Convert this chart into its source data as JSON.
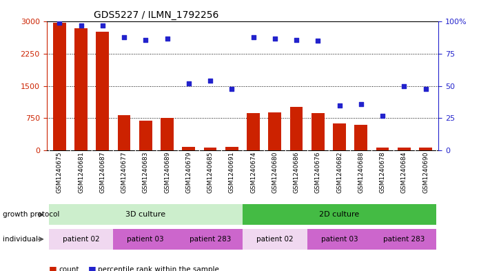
{
  "title": "GDS5227 / ILMN_1792256",
  "samples": [
    "GSM1240675",
    "GSM1240681",
    "GSM1240687",
    "GSM1240677",
    "GSM1240683",
    "GSM1240689",
    "GSM1240679",
    "GSM1240685",
    "GSM1240691",
    "GSM1240674",
    "GSM1240680",
    "GSM1240686",
    "GSM1240676",
    "GSM1240682",
    "GSM1240688",
    "GSM1240678",
    "GSM1240684",
    "GSM1240690"
  ],
  "counts": [
    2980,
    2840,
    2760,
    820,
    700,
    760,
    80,
    70,
    80,
    870,
    890,
    1020,
    870,
    630,
    590,
    70,
    70,
    65
  ],
  "percentiles": [
    99,
    97,
    97,
    88,
    86,
    87,
    52,
    54,
    48,
    88,
    87,
    86,
    85,
    35,
    36,
    27,
    50,
    48
  ],
  "bar_color": "#cc2200",
  "dot_color": "#2222cc",
  "ylim_left": [
    0,
    3000
  ],
  "ylim_right": [
    0,
    100
  ],
  "yticks_left": [
    0,
    750,
    1500,
    2250,
    3000
  ],
  "yticks_right": [
    0,
    25,
    50,
    75,
    100
  ],
  "growth_protocol_color_3d": "#cceecc",
  "growth_protocol_color_2d": "#44bb44",
  "patient02_color": "#f0d8f0",
  "patient03_color": "#cc66cc",
  "patient283_color": "#cc66cc",
  "label_growth": "growth protocol",
  "label_individual": "individual",
  "legend_count": "count",
  "legend_percentile": "percentile rank within the sample",
  "xtick_bg": "#dddddd"
}
